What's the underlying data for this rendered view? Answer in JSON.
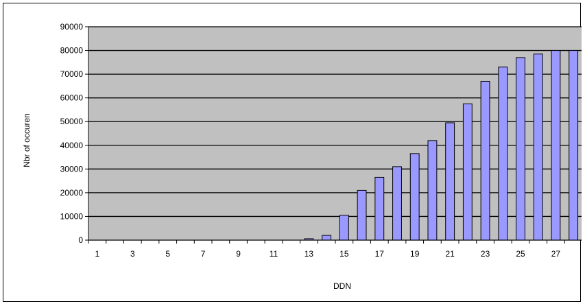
{
  "chart_data": {
    "type": "bar",
    "title": "",
    "xlabel": "DDN",
    "ylabel": "Nbr of occuren",
    "ylim": [
      0,
      90000
    ],
    "yticks": [
      0,
      10000,
      20000,
      30000,
      40000,
      50000,
      60000,
      70000,
      80000,
      90000
    ],
    "grid": true,
    "legend": "none",
    "categories": [
      "1",
      "2",
      "3",
      "4",
      "5",
      "6",
      "7",
      "8",
      "9",
      "10",
      "11",
      "12",
      "13",
      "14",
      "15",
      "16",
      "17",
      "18",
      "19",
      "20",
      "21",
      "22",
      "23",
      "24",
      "25",
      "26",
      "27",
      "28"
    ],
    "xtick_labels": [
      "1",
      "",
      "3",
      "",
      "5",
      "",
      "7",
      "",
      "9",
      "",
      "11",
      "",
      "13",
      "",
      "15",
      "",
      "17",
      "",
      "19",
      "",
      "21",
      "",
      "23",
      "",
      "25",
      "",
      "27",
      ""
    ],
    "series": [
      {
        "values": [
          0,
          0,
          0,
          0,
          0,
          0,
          0,
          0,
          0,
          0,
          0,
          0,
          600,
          2000,
          10500,
          21000,
          26500,
          31000,
          36500,
          42000,
          49500,
          57500,
          67000,
          73000,
          77000,
          78500,
          80000,
          80000
        ]
      }
    ],
    "colors": {
      "plot_background": "#c0c0c0",
      "bar_fill": "#9999ff",
      "bar_stroke": "#000000",
      "gridline": "#000000"
    }
  }
}
